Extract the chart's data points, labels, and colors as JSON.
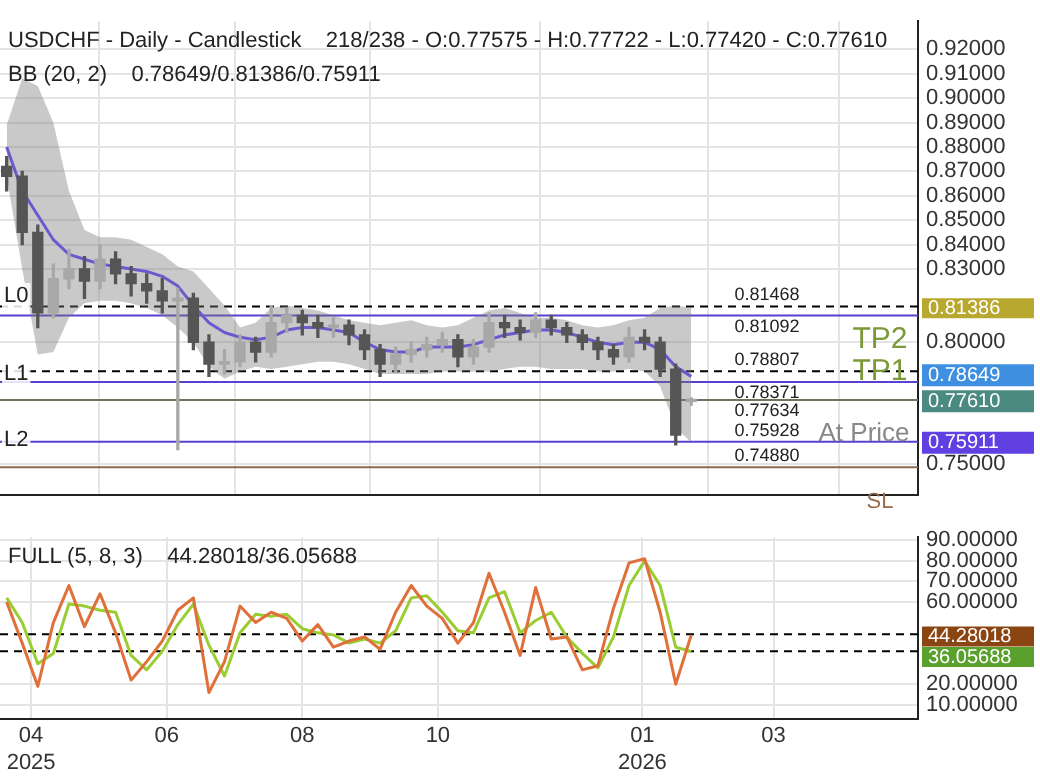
{
  "chart_data": [
    {
      "type": "candlestick",
      "title": "USDCHF - Daily - Candlestick    218/238 - O:0.77575 - H:0.77722 - L:0.77420 - C:0.77610",
      "subtitle": "BB (20, 2)    0.78649/0.81386/0.75911",
      "colors": [
        "#555555",
        "#555555",
        "#555555",
        "#a8a8a8",
        "#a8a8a8",
        "#555555",
        "#a8a8a8",
        "#555555",
        "#555555",
        "#555555",
        "#555555",
        "#a8a8a8",
        "#555555",
        "#555555",
        "#a8a8a8",
        "#a8a8a8",
        "#555555",
        "#a8a8a8",
        "#a8a8a8",
        "#555555",
        "#555555",
        "#a8a8a8",
        "#555555",
        "#555555",
        "#555555",
        "#a8a8a8",
        "#a8a8a8",
        "#a8a8a8",
        "#a8a8a8",
        "#555555",
        "#a8a8a8",
        "#a8a8a8",
        "#555555",
        "#555555",
        "#a8a8a8",
        "#555555",
        "#555555",
        "#555555",
        "#555555",
        "#555555",
        "#a8a8a8",
        "#555555",
        "#555555",
        "#555555",
        "#a8a8a8"
      ],
      "x": [
        "2025-03-21",
        "2025-03-28",
        "2025-04-04",
        "2025-04-11",
        "2025-04-18",
        "2025-04-25",
        "2025-05-02",
        "2025-05-09",
        "2025-05-16",
        "2025-05-23",
        "2025-05-30",
        "2025-06-06",
        "2025-06-13",
        "2025-06-20",
        "2025-06-27",
        "2025-07-04",
        "2025-07-11",
        "2025-07-18",
        "2025-07-25",
        "2025-08-01",
        "2025-08-08",
        "2025-08-15",
        "2025-08-22",
        "2025-08-29",
        "2025-09-05",
        "2025-09-12",
        "2025-09-19",
        "2025-09-26",
        "2025-10-03",
        "2025-10-10",
        "2025-10-17",
        "2025-10-24",
        "2025-10-31",
        "2025-11-07",
        "2025-11-14",
        "2025-11-21",
        "2025-11-28",
        "2025-12-05",
        "2025-12-12",
        "2025-12-19",
        "2025-12-26",
        "2026-01-02",
        "2026-01-09",
        "2026-01-16",
        "2026-01-23"
      ],
      "ohlc": [
        [
          0.872,
          0.876,
          0.862,
          0.868
        ],
        [
          0.868,
          0.87,
          0.84,
          0.845
        ],
        [
          0.845,
          0.848,
          0.806,
          0.812
        ],
        [
          0.812,
          0.832,
          0.81,
          0.826
        ],
        [
          0.826,
          0.838,
          0.822,
          0.83
        ],
        [
          0.83,
          0.835,
          0.818,
          0.825
        ],
        [
          0.825,
          0.84,
          0.822,
          0.834
        ],
        [
          0.834,
          0.837,
          0.824,
          0.828
        ],
        [
          0.828,
          0.831,
          0.819,
          0.824
        ],
        [
          0.824,
          0.828,
          0.816,
          0.821
        ],
        [
          0.821,
          0.826,
          0.812,
          0.817
        ],
        [
          0.817,
          0.822,
          0.756,
          0.818
        ],
        [
          0.818,
          0.82,
          0.797,
          0.8
        ],
        [
          0.8,
          0.803,
          0.786,
          0.791
        ],
        [
          0.791,
          0.797,
          0.787,
          0.792
        ],
        [
          0.792,
          0.803,
          0.79,
          0.8
        ],
        [
          0.8,
          0.802,
          0.792,
          0.796
        ],
        [
          0.796,
          0.815,
          0.794,
          0.808
        ],
        [
          0.808,
          0.814,
          0.804,
          0.811
        ],
        [
          0.811,
          0.813,
          0.803,
          0.808
        ],
        [
          0.808,
          0.811,
          0.802,
          0.806
        ],
        [
          0.806,
          0.81,
          0.802,
          0.807
        ],
        [
          0.807,
          0.809,
          0.799,
          0.803
        ],
        [
          0.803,
          0.805,
          0.793,
          0.797
        ],
        [
          0.797,
          0.799,
          0.786,
          0.791
        ],
        [
          0.791,
          0.798,
          0.788,
          0.795
        ],
        [
          0.795,
          0.8,
          0.792,
          0.797
        ],
        [
          0.797,
          0.802,
          0.794,
          0.799
        ],
        [
          0.799,
          0.804,
          0.796,
          0.801
        ],
        [
          0.801,
          0.803,
          0.79,
          0.794
        ],
        [
          0.794,
          0.801,
          0.791,
          0.798
        ],
        [
          0.798,
          0.812,
          0.796,
          0.808
        ],
        [
          0.808,
          0.811,
          0.802,
          0.806
        ],
        [
          0.806,
          0.809,
          0.801,
          0.804
        ],
        [
          0.804,
          0.812,
          0.802,
          0.809
        ],
        [
          0.809,
          0.811,
          0.803,
          0.806
        ],
        [
          0.806,
          0.808,
          0.8,
          0.803
        ],
        [
          0.803,
          0.805,
          0.797,
          0.8
        ],
        [
          0.8,
          0.802,
          0.793,
          0.797
        ],
        [
          0.797,
          0.799,
          0.791,
          0.794
        ],
        [
          0.794,
          0.806,
          0.792,
          0.802
        ],
        [
          0.802,
          0.805,
          0.797,
          0.8
        ],
        [
          0.8,
          0.802,
          0.786,
          0.789
        ],
        [
          0.789,
          0.791,
          0.758,
          0.762
        ],
        [
          0.77575,
          0.77722,
          0.7742,
          0.7761
        ]
      ],
      "series": [
        {
          "type": "line",
          "color": "#6a5acd",
          "values": [
            0.88,
            0.862,
            0.852,
            0.842,
            0.836,
            0.834,
            0.832,
            0.831,
            0.83,
            0.829,
            0.827,
            0.823,
            0.815,
            0.808,
            0.804,
            0.802,
            0.801,
            0.802,
            0.805,
            0.806,
            0.806,
            0.805,
            0.804,
            0.8,
            0.797,
            0.796,
            0.796,
            0.798,
            0.798,
            0.798,
            0.799,
            0.801,
            0.803,
            0.804,
            0.805,
            0.805,
            0.804,
            0.802,
            0.8,
            0.799,
            0.8,
            0.8,
            0.797,
            0.79,
            0.786
          ],
          "upper": [
            0.889,
            0.908,
            0.905,
            0.89,
            0.862,
            0.846,
            0.843,
            0.843,
            0.842,
            0.839,
            0.836,
            0.831,
            0.829,
            0.822,
            0.815,
            0.806,
            0.808,
            0.814,
            0.815,
            0.814,
            0.813,
            0.811,
            0.809,
            0.808,
            0.807,
            0.808,
            0.809,
            0.807,
            0.806,
            0.807,
            0.81,
            0.813,
            0.814,
            0.812,
            0.81,
            0.81,
            0.809,
            0.807,
            0.806,
            0.807,
            0.809,
            0.81,
            0.814,
            0.815,
            0.814
          ],
          "lower": [
            0.868,
            0.83,
            0.795,
            0.796,
            0.81,
            0.816,
            0.817,
            0.817,
            0.816,
            0.814,
            0.811,
            0.806,
            0.8,
            0.79,
            0.785,
            0.788,
            0.79,
            0.789,
            0.79,
            0.791,
            0.792,
            0.792,
            0.791,
            0.789,
            0.787,
            0.787,
            0.787,
            0.787,
            0.788,
            0.788,
            0.788,
            0.788,
            0.789,
            0.79,
            0.79,
            0.789,
            0.789,
            0.789,
            0.788,
            0.788,
            0.789,
            0.788,
            0.782,
            0.765,
            0.759
          ]
        }
      ],
      "xlim": [
        "2025-03-18",
        "2026-05-05"
      ],
      "xticks": [
        {
          "value": "2025-04-01",
          "label": null
        },
        {
          "value": "2025-06-01",
          "label": null
        },
        {
          "value": "2025-08-01",
          "label": null
        },
        {
          "value": "2025-10-01",
          "label": null
        },
        {
          "value": "2026-01-01",
          "label": null
        },
        {
          "value": "2026-03-01",
          "label": null
        }
      ],
      "ylim": [
        0.7375,
        0.9315
      ],
      "yticks": [
        {
          "value": 0.75,
          "label": "0.75000"
        },
        {
          "value": 0.8,
          "label": "0.80000"
        },
        {
          "value": 0.83,
          "label": "0.83000"
        },
        {
          "value": 0.84,
          "label": "0.84000"
        },
        {
          "value": 0.85,
          "label": "0.85000"
        },
        {
          "value": 0.86,
          "label": "0.86000"
        },
        {
          "value": 0.87,
          "label": "0.87000"
        },
        {
          "value": 0.88,
          "label": "0.88000"
        },
        {
          "value": 0.89,
          "label": "0.89000"
        },
        {
          "value": 0.9,
          "label": "0.90000"
        },
        {
          "value": 0.91,
          "label": "0.91000"
        },
        {
          "value": 0.92,
          "label": "0.92000"
        }
      ],
      "tick_labels": "y",
      "grid": true,
      "ref_lines": [
        {
          "axis": "y",
          "value": 0.81468,
          "label": "0.81468",
          "color": "#000000",
          "line_style": "dashed"
        },
        {
          "axis": "y",
          "value": 0.81092,
          "label": "0.81092",
          "color": "#5b3fd0"
        },
        {
          "axis": "y",
          "value": 0.78807,
          "label": "0.78807",
          "color": "#000000",
          "line_style": "dashed"
        },
        {
          "axis": "y",
          "value": 0.78371,
          "label": "0.78371",
          "color": "#5b3fd0"
        },
        {
          "axis": "y",
          "value": 0.77634,
          "label": "0.77634",
          "color": "#6b7560"
        },
        {
          "axis": "y",
          "value": 0.75928,
          "label": "0.75928",
          "color": "#5b3fd0"
        },
        {
          "axis": "y",
          "value": 0.7488,
          "label": "0.74880",
          "color": "#8b6a50"
        }
      ],
      "annotations": [
        "L0",
        "L1",
        "L2",
        "TP2",
        "TP1",
        "At Price",
        "SL",
        "0.81386",
        "0.78649",
        "0.77610",
        "0.75911"
      ]
    },
    {
      "type": "line",
      "title": "FULL (5, 8, 3)    44.28018/36.05688",
      "marker": "none",
      "x": [
        "2025-03-21",
        "2025-03-28",
        "2025-04-04",
        "2025-04-11",
        "2025-04-18",
        "2025-04-25",
        "2025-05-02",
        "2025-05-09",
        "2025-05-16",
        "2025-05-23",
        "2025-05-30",
        "2025-06-06",
        "2025-06-13",
        "2025-06-20",
        "2025-06-27",
        "2025-07-04",
        "2025-07-11",
        "2025-07-18",
        "2025-07-25",
        "2025-08-01",
        "2025-08-08",
        "2025-08-15",
        "2025-08-22",
        "2025-08-29",
        "2025-09-05",
        "2025-09-12",
        "2025-09-19",
        "2025-09-26",
        "2025-10-03",
        "2025-10-10",
        "2025-10-17",
        "2025-10-24",
        "2025-10-31",
        "2025-11-07",
        "2025-11-14",
        "2025-11-21",
        "2025-11-28",
        "2025-12-05",
        "2025-12-12",
        "2025-12-19",
        "2025-12-26",
        "2026-01-02",
        "2026-01-09",
        "2026-01-16",
        "2026-01-23"
      ],
      "series": [
        {
          "color": "#e0703a",
          "values": [
            60,
            40,
            19,
            50,
            68,
            48,
            64,
            45,
            22,
            31,
            41,
            56,
            62,
            16,
            31,
            58,
            50,
            55,
            52,
            41,
            49,
            38,
            41,
            43,
            37,
            55,
            68,
            58,
            52,
            40,
            50,
            74,
            55,
            34,
            67,
            42,
            43,
            27,
            29,
            57,
            79,
            81,
            55,
            20,
            44
          ]
        },
        {
          "color": "#9acd32",
          "values": [
            62,
            50,
            30,
            35,
            59,
            58,
            56,
            55,
            34,
            27,
            36,
            49,
            59,
            39,
            24,
            45,
            54,
            53,
            54,
            47,
            45,
            44,
            40,
            42,
            40,
            46,
            62,
            63,
            55,
            46,
            45,
            62,
            65,
            45,
            51,
            55,
            43,
            35,
            28,
            43,
            68,
            80,
            68,
            38,
            36
          ]
        }
      ],
      "xlim": [
        "2025-03-18",
        "2026-05-05"
      ],
      "xticks": [
        {
          "value": "2025-04-01",
          "label": "04\n2025"
        },
        {
          "value": "2025-06-01",
          "label": "06"
        },
        {
          "value": "2025-08-01",
          "label": "08"
        },
        {
          "value": "2025-10-01",
          "label": "10"
        },
        {
          "value": "2026-01-01",
          "label": "01\n2026"
        },
        {
          "value": "2026-03-01",
          "label": "03"
        }
      ],
      "ylim": [
        3,
        91.5
      ],
      "yticks": [
        {
          "value": 10,
          "label": "10.00000"
        },
        {
          "value": 20,
          "label": "20.00000"
        },
        {
          "value": 60,
          "label": "60.00000"
        },
        {
          "value": 70,
          "label": "70.00000"
        },
        {
          "value": 80,
          "label": "80.00000"
        },
        {
          "value": 90,
          "label": "90.00000"
        }
      ],
      "grid": true,
      "ref_lines": [
        {
          "axis": "y",
          "value": 44.28018,
          "color": "#000000",
          "line_style": "dashed"
        },
        {
          "axis": "y",
          "value": 36.05688,
          "color": "#000000",
          "line_style": "dashed"
        }
      ],
      "annotations": [
        "44.28018",
        "36.05688"
      ]
    }
  ]
}
